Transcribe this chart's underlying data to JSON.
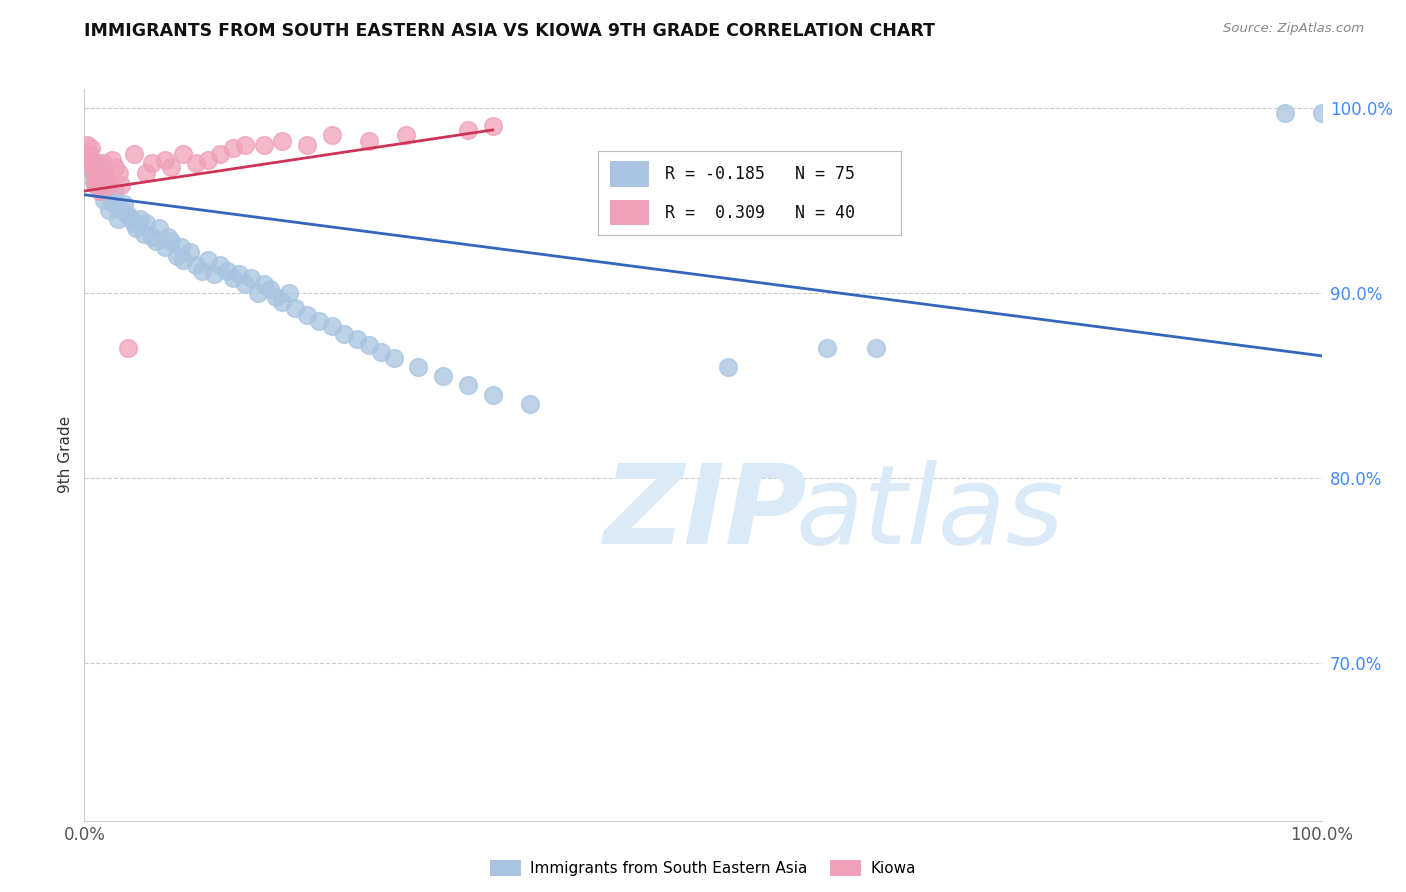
{
  "title": "IMMIGRANTS FROM SOUTH EASTERN ASIA VS KIOWA 9TH GRADE CORRELATION CHART",
  "source": "Source: ZipAtlas.com",
  "ylabel": "9th Grade",
  "legend_label_blue": "Immigrants from South Eastern Asia",
  "legend_label_pink": "Kiowa",
  "blue_color": "#a8c4e0",
  "blue_line_color": "#3366bb",
  "pink_color": "#f0a0b8",
  "pink_line_color": "#cc3355",
  "blue_scatter_x": [
    0.002,
    0.004,
    0.005,
    0.006,
    0.007,
    0.008,
    0.009,
    0.01,
    0.011,
    0.012,
    0.013,
    0.014,
    0.015,
    0.016,
    0.017,
    0.018,
    0.02,
    0.022,
    0.024,
    0.025,
    0.027,
    0.03,
    0.032,
    0.035,
    0.038,
    0.04,
    0.042,
    0.045,
    0.048,
    0.05,
    0.055,
    0.058,
    0.06,
    0.065,
    0.068,
    0.07,
    0.075,
    0.078,
    0.08,
    0.085,
    0.09,
    0.095,
    0.1,
    0.105,
    0.11,
    0.115,
    0.12,
    0.125,
    0.13,
    0.135,
    0.14,
    0.145,
    0.15,
    0.155,
    0.16,
    0.165,
    0.17,
    0.18,
    0.19,
    0.2,
    0.21,
    0.22,
    0.23,
    0.24,
    0.25,
    0.27,
    0.29,
    0.31,
    0.33,
    0.36,
    0.52,
    0.6,
    0.64,
    0.97,
    1.0
  ],
  "blue_scatter_y": [
    0.97,
    0.975,
    0.968,
    0.972,
    0.965,
    0.96,
    0.958,
    0.963,
    0.97,
    0.968,
    0.955,
    0.96,
    0.958,
    0.95,
    0.955,
    0.96,
    0.945,
    0.95,
    0.948,
    0.955,
    0.94,
    0.945,
    0.948,
    0.942,
    0.94,
    0.938,
    0.935,
    0.94,
    0.932,
    0.938,
    0.93,
    0.928,
    0.935,
    0.925,
    0.93,
    0.928,
    0.92,
    0.925,
    0.918,
    0.922,
    0.915,
    0.912,
    0.918,
    0.91,
    0.915,
    0.912,
    0.908,
    0.91,
    0.905,
    0.908,
    0.9,
    0.905,
    0.902,
    0.898,
    0.895,
    0.9,
    0.892,
    0.888,
    0.885,
    0.882,
    0.878,
    0.875,
    0.872,
    0.868,
    0.865,
    0.86,
    0.855,
    0.85,
    0.845,
    0.84,
    0.86,
    0.87,
    0.87,
    0.997,
    0.997
  ],
  "pink_scatter_x": [
    0.002,
    0.003,
    0.004,
    0.005,
    0.006,
    0.007,
    0.008,
    0.009,
    0.01,
    0.011,
    0.012,
    0.013,
    0.015,
    0.016,
    0.018,
    0.02,
    0.022,
    0.025,
    0.028,
    0.03,
    0.035,
    0.04,
    0.05,
    0.055,
    0.065,
    0.07,
    0.08,
    0.09,
    0.1,
    0.11,
    0.12,
    0.13,
    0.145,
    0.16,
    0.18,
    0.2,
    0.23,
    0.26,
    0.31,
    0.33
  ],
  "pink_scatter_y": [
    0.98,
    0.972,
    0.975,
    0.978,
    0.97,
    0.968,
    0.965,
    0.96,
    0.963,
    0.958,
    0.96,
    0.955,
    0.97,
    0.965,
    0.96,
    0.958,
    0.972,
    0.968,
    0.965,
    0.958,
    0.87,
    0.975,
    0.965,
    0.97,
    0.972,
    0.968,
    0.975,
    0.97,
    0.972,
    0.975,
    0.978,
    0.98,
    0.98,
    0.982,
    0.98,
    0.985,
    0.982,
    0.985,
    0.988,
    0.99
  ],
  "blue_line_x": [
    0.0,
    1.0
  ],
  "blue_line_y": [
    0.953,
    0.866
  ],
  "pink_line_x": [
    0.0,
    0.33
  ],
  "pink_line_y": [
    0.955,
    0.988
  ],
  "xlim": [
    0.0,
    1.0
  ],
  "ylim": [
    0.615,
    1.01
  ],
  "ytick_positions": [
    1.0,
    0.9,
    0.8,
    0.7
  ],
  "ytick_labels": [
    "100.0%",
    "90.0%",
    "80.0%",
    "70.0%"
  ],
  "xtick_positions": [
    0.0,
    0.25,
    0.5,
    0.75,
    1.0
  ],
  "xtick_labels": [
    "0.0%",
    "",
    "",
    "",
    "100.0%"
  ],
  "background_color": "#ffffff",
  "grid_color": "#cccccc"
}
